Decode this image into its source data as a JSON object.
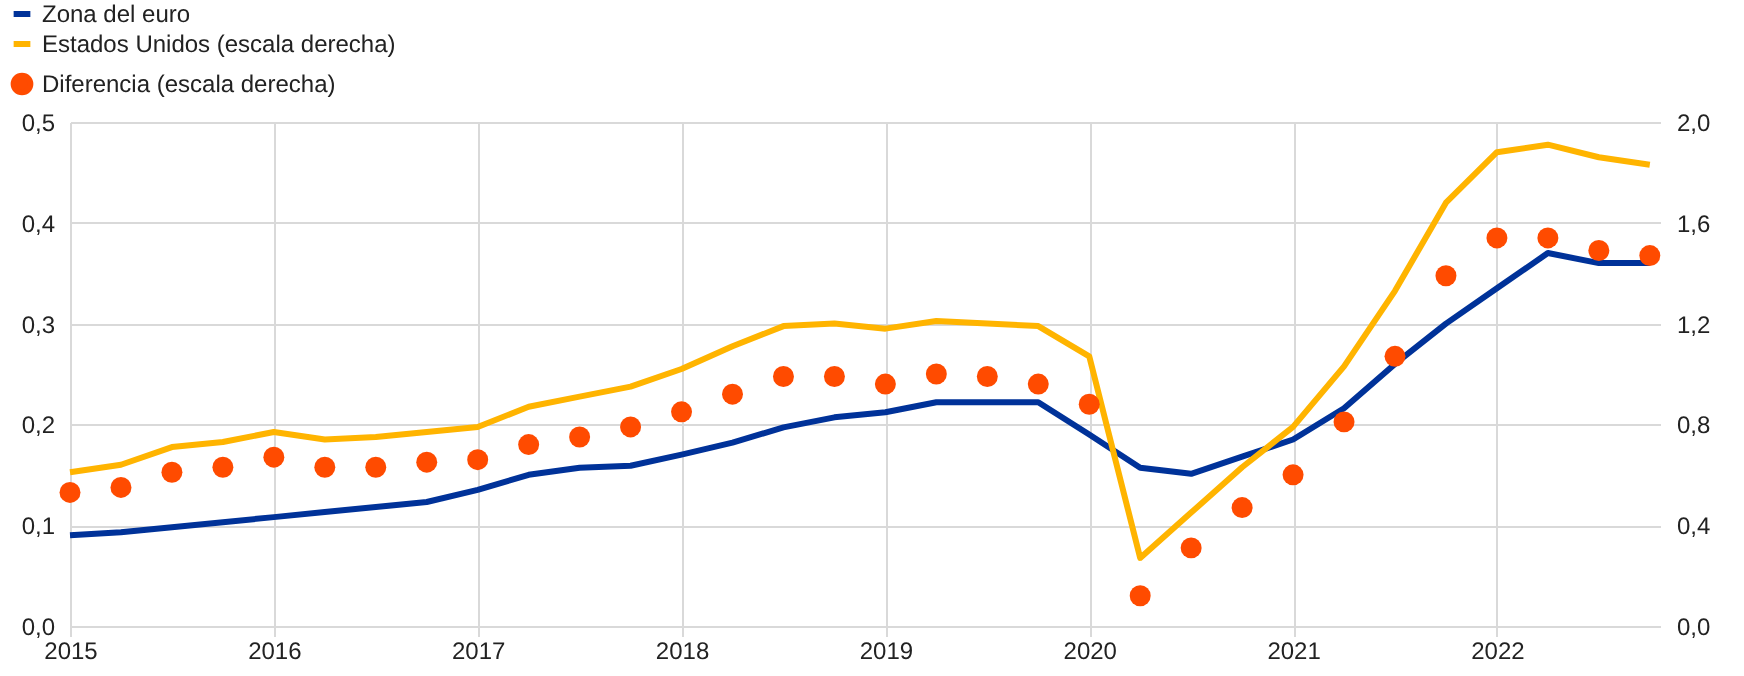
{
  "chart_data": {
    "type": "line",
    "x": [
      2015,
      2015.25,
      2015.5,
      2015.75,
      2016,
      2016.25,
      2016.5,
      2016.75,
      2017,
      2017.25,
      2017.5,
      2017.75,
      2018,
      2018.25,
      2018.5,
      2018.75,
      2019,
      2019.25,
      2019.5,
      2019.75,
      2020,
      2020.25,
      2020.5,
      2020.75,
      2021,
      2021.25,
      2021.5,
      2021.75,
      2022,
      2022.25,
      2022.5,
      2022.75
    ],
    "series": [
      {
        "name": "Zona del euro",
        "color": "#003299",
        "values": [
          0.09,
          0.093,
          0.098,
          0.103,
          0.108,
          0.113,
          0.118,
          0.123,
          0.135,
          0.15,
          0.157,
          0.159,
          0.17,
          0.182,
          0.197,
          0.207,
          0.212,
          0.222,
          0.222,
          0.222,
          0.19,
          0.157,
          0.151,
          0.168,
          0.185,
          0.216,
          0.26,
          0.3,
          0.335,
          0.37,
          0.36,
          0.36
        ]
      },
      {
        "name": "Estados Unidos (escala derecha)",
        "color": "#ffb400",
        "axis": "y2",
        "values": [
          0.61,
          0.64,
          0.71,
          0.73,
          0.77,
          0.74,
          0.75,
          0.77,
          0.79,
          0.87,
          0.91,
          0.95,
          1.02,
          1.11,
          1.19,
          1.2,
          1.18,
          1.21,
          1.2,
          1.19,
          1.07,
          0.27,
          0.45,
          0.63,
          0.79,
          1.03,
          1.33,
          1.68,
          1.88,
          1.91,
          1.86,
          1.83
        ]
      },
      {
        "name": "Diferencia (escala derecha)",
        "color": "#ff4b00",
        "type": "scatter",
        "axis": "y2",
        "values": [
          0.53,
          0.55,
          0.61,
          0.63,
          0.67,
          0.63,
          0.63,
          0.65,
          0.66,
          0.72,
          0.75,
          0.79,
          0.85,
          0.92,
          0.99,
          0.99,
          0.96,
          1.0,
          0.99,
          0.96,
          0.88,
          0.12,
          0.31,
          0.47,
          0.6,
          0.81,
          1.07,
          1.39,
          1.54,
          1.54,
          1.49,
          1.47
        ]
      }
    ],
    "xlim": [
      2015,
      2022.8
    ],
    "xticks": [
      2015,
      2016,
      2017,
      2018,
      2019,
      2020,
      2021,
      2022
    ],
    "ylim": [
      0,
      0.5
    ],
    "yticks": [
      {
        "value": 0,
        "label": "0,0"
      },
      {
        "value": 0.1,
        "label": "0,1"
      },
      {
        "value": 0.2,
        "label": "0,2"
      },
      {
        "value": 0.3,
        "label": "0,3"
      },
      {
        "value": 0.4,
        "label": "0,4"
      },
      {
        "value": 0.5,
        "label": "0,5"
      }
    ],
    "y2lim": [
      0,
      2
    ],
    "y2ticks": [
      {
        "value": 0,
        "label": "0,0"
      },
      {
        "value": 0.4,
        "label": "0,4"
      },
      {
        "value": 0.8,
        "label": "0,8"
      },
      {
        "value": 1.2,
        "label": "1,2"
      },
      {
        "value": 1.6,
        "label": "1,6"
      },
      {
        "value": 2,
        "label": "2,0"
      }
    ],
    "grid": true,
    "legend": "top left"
  }
}
